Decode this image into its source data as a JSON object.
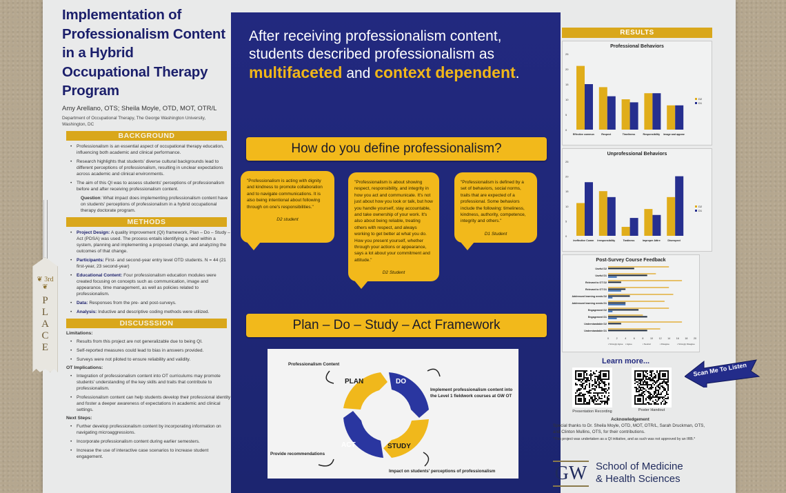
{
  "left": {
    "title": "Implementation of Professionalism Content in a Hybrid Occupational Therapy Program",
    "title_lines": [
      "Implementation of",
      "Professionalism Content",
      "in a Hybrid",
      "Occupational Therapy",
      "Program"
    ],
    "authors": "Amy Arellano, OTS; Sheila Moyle, OTD, MOT, OTR/L",
    "department": "Department of Occupational Therapy, The George Washington University, Washington, DC",
    "background": {
      "heading": "BACKGROUND",
      "bullets": [
        "Professionalism is an essential aspect of occupational therapy education, influencing both academic and clinical performance.",
        "Research highlights that students' diverse cultural backgrounds lead to different perceptions of professionalism, resulting in unclear expectations across academic and clinical environments.",
        "The aim of this QI was to assess students' perceptions of professionalism before and after receiving professionalism content."
      ],
      "question_label": "Question",
      "question": ": What impact does implementing professionalism content have on students' perceptions of professionalism in a hybrid occupational therapy doctorate program."
    },
    "methods": {
      "heading": "METHODS",
      "items": [
        {
          "label": "Project Design:",
          "text": " A quality improvement (QI) framework, Plan – Do – Study – Act (PDSA) was used. The process entails identifying a need within a system, planning and implementing a proposed change, and analyzing the outcomes of that change."
        },
        {
          "label": "Participants:",
          "text": " First- and second-year entry level OTD students. N = 44 (21 first-year, 23 second-year)"
        },
        {
          "label": "Educational Content:",
          "text": " Four professionalism education modules were created focusing on concepts such as communication, image and appearance, time management, as well as policies related to professionalism."
        },
        {
          "label": "Data:",
          "text": " Responses from the pre- and post-surveys."
        },
        {
          "label": "Analysis:",
          "text": " Inductive and descriptive coding methods were utilized."
        }
      ]
    },
    "discussion": {
      "heading": "DISCUSSSION",
      "limitations_label": "Limitations:",
      "limitations": [
        "Results from this project are not generalizable due to being QI.",
        "Self-reported measures could lead to bias in answers provided.",
        "Surveys were not piloted to ensure reliability and validity."
      ],
      "implications_label": "OT Implications:",
      "implications": [
        "Integration of professionalism content into OT curriculums may promote students' understanding of the key skills and traits that contribute to professionalism.",
        "Professionalism content can help students develop their professional identity and foster a deeper awareness of expectations in academic and clinical settings."
      ],
      "next_label": "Next Steps:",
      "next_steps": [
        "Further develop professionalism content by incorporating information on navigating microaggressions.",
        "Incorporate professionalism content during earlier semesters.",
        "Increase the use of interactive case scenarios to increase student engagement."
      ]
    }
  },
  "ribbon": {
    "rank": "3rd",
    "word": [
      "P",
      "L",
      "A",
      "C",
      "E"
    ]
  },
  "center": {
    "headline_part1": "After receiving professionalism content, students described professionalism as ",
    "highlight1": "multifaceted",
    "headline_and": " and ",
    "highlight2": "context dependent",
    "headline_end": ".",
    "question_pill": "How do you define professionalism?",
    "quotes": [
      {
        "text": "\"Professionalism is acting with dignity and kindness to promote collaboration and to navigate communications. It is also being intentional about following through on one's responsibilities.\"",
        "author": "D2 student"
      },
      {
        "text": "\"Professionalism is about showing respect, responsibility, and integrity in how you act and communicate. It's not just about how you look or talk, but how you handle yourself, stay accountable, and take ownership of your work. It's also about being reliable, treating others with respect, and always working to get better at what you do. How you present yourself, whether through your actions or appearance, says a lot about your commitment and attitude.\"",
        "author": "D2 Student"
      },
      {
        "text": "\"Professionalism is defined by a set of behaviors, social norms, traits that are expected of a professional. Some behaviors include the following: timeliness, kindness, authority, competence, integrity and others.\"",
        "author": "D1 Student"
      }
    ],
    "framework_pill": "Plan – Do – Study – Act Framework",
    "pdsa": {
      "plan": "PLAN",
      "do": "DO",
      "study": "STUDY",
      "act": "ACT",
      "plan_note": "Professionalism Content",
      "do_note": "Implement professionalism content into the Level 1 fieldwork courses at GW OT",
      "study_note": "Impact on students' perceptions of professionalism",
      "act_note": "Provide recommendations",
      "colors": {
        "gold": "#f0b81c",
        "blue": "#2a36a0"
      }
    }
  },
  "right": {
    "results_heading": "RESULTS",
    "learn_more": "Learn more...",
    "qr_captions": [
      "Presentation Recording",
      "Poster Handout"
    ],
    "ack_title": "Acknowledgement",
    "ack_text": "Special thanks to Dr. Sheila Moyle, OTD, MOT, OTR/L, Sarah Druckman, OTS, and Clinton Mullins, OTS, for their contributions.",
    "irb_note": "*This project was undertaken as a QI initiative, and as such was not approved by an IRB.*",
    "logo": "GW",
    "school_line1": "School of Medicine",
    "school_line2": "& Health Sciences",
    "scan_arrow": "Scan Me To Listen"
  },
  "colors": {
    "navy": "#1f2a7c",
    "gold": "#f2b91b",
    "section_gold": "#d9a71b",
    "d2": "#e0ad1a",
    "d1": "#262f8f"
  },
  "chart_data": [
    {
      "type": "bar",
      "title": "Professional Behaviors",
      "categories": [
        "Effective communication",
        "Respect",
        "Timeliness",
        "Responsibility",
        "Image and appearance"
      ],
      "series": [
        {
          "name": "D2",
          "values": [
            21,
            14,
            10,
            12,
            8
          ]
        },
        {
          "name": "D1",
          "values": [
            15,
            11,
            9,
            12,
            8
          ]
        }
      ],
      "ylim": [
        0,
        25
      ],
      "yticks": [
        0,
        5,
        10,
        15,
        20,
        25
      ],
      "legend_position": "right"
    },
    {
      "type": "bar",
      "title": "Unprofessional Behaviors",
      "categories": [
        "Ineffective Communication",
        "Irresponsibility",
        "Tardiness",
        "Improper Attire / Image and Appearance",
        "Disrespect"
      ],
      "series": [
        {
          "name": "D2",
          "values": [
            11,
            15,
            3,
            9,
            13
          ]
        },
        {
          "name": "D1",
          "values": [
            18,
            13,
            6,
            7,
            20
          ]
        }
      ],
      "ylim": [
        0,
        25
      ],
      "yticks": [
        0,
        5,
        10,
        15,
        20,
        25
      ],
      "legend_position": "right"
    },
    {
      "type": "bar",
      "orientation": "horizontal",
      "title": "Post-Survey Course Feedback",
      "categories": [
        "Useful D2",
        "Useful D1",
        "Relevant to OT D2",
        "Relevant to OT D1",
        "Addressed learning needs D2",
        "Addressed learning needs D1",
        "Engagement D2",
        "Engagement D1",
        "Understandable D2",
        "Understandable D1"
      ],
      "series": [
        {
          "name": "Strongly Agree",
          "values": [
            14,
            11,
            17,
            14,
            15,
            13,
            14,
            8,
            17,
            12
          ],
          "color": "#e6c068"
        },
        {
          "name": "Agree",
          "values": [
            6,
            9,
            3,
            4,
            5,
            4,
            7,
            9,
            3,
            9
          ],
          "color": "#1f2a3c"
        },
        {
          "name": "Neutral",
          "values": [
            0,
            2,
            0,
            3,
            1,
            4,
            1,
            2,
            0,
            0
          ],
          "color": "#3a6fb8"
        },
        {
          "name": "Disagree",
          "values": [
            0,
            0,
            0,
            0,
            0,
            0,
            0,
            0,
            0,
            0
          ]
        },
        {
          "name": "Strongly Disagree",
          "values": [
            0,
            0,
            0,
            0,
            0,
            0,
            0,
            0,
            0,
            0
          ]
        }
      ],
      "xlim": [
        0,
        20
      ],
      "xticks": [
        0,
        2,
        4,
        6,
        8,
        10,
        12,
        14,
        16,
        18,
        20
      ],
      "legend_position": "bottom"
    }
  ]
}
